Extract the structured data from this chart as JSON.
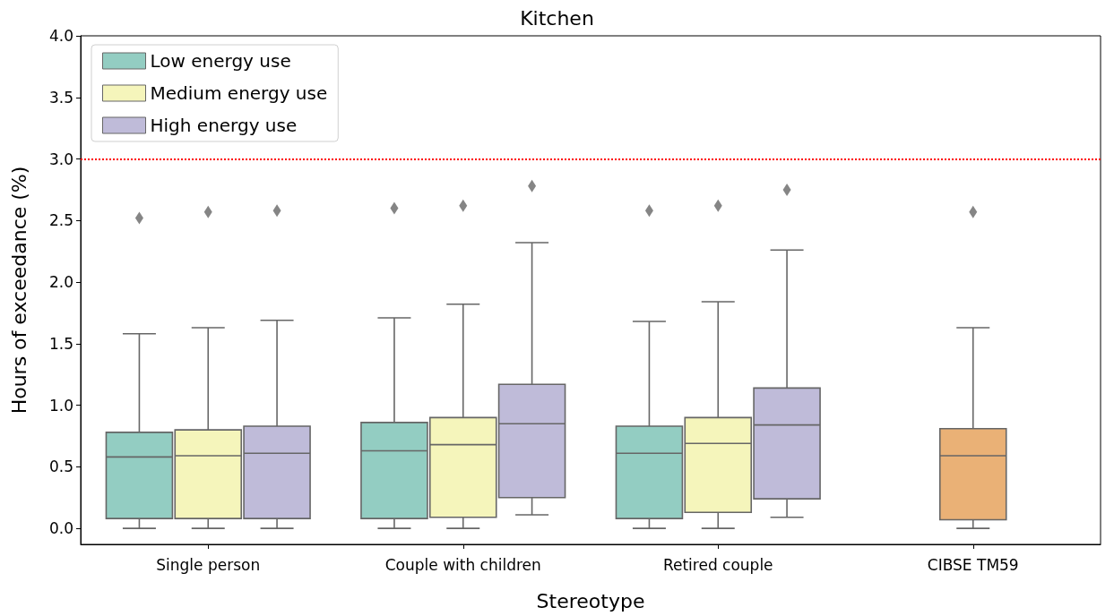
{
  "chart_data": {
    "type": "box",
    "title": "Kitchen",
    "xlabel": "Stereotype",
    "ylabel": "Hours of exceedance (%)",
    "categories": [
      "Single person",
      "Couple with children",
      "Retired couple",
      "CIBSE TM59"
    ],
    "ylim": [
      -0.13,
      4.0
    ],
    "yticks": [
      {
        "value": 0,
        "label": "0.0"
      },
      {
        "value": 0.5,
        "label": "0.5"
      },
      {
        "value": 1,
        "label": "1.0"
      },
      {
        "value": 1.5,
        "label": "1.5"
      },
      {
        "value": 2,
        "label": "2.0"
      },
      {
        "value": 2.5,
        "label": "2.5"
      },
      {
        "value": 3,
        "label": "3.0"
      },
      {
        "value": 3.5,
        "label": "3.5"
      },
      {
        "value": 4,
        "label": "4.0"
      }
    ],
    "grid": false,
    "legend": "top left",
    "marker": "diamond",
    "ref_lines": [
      {
        "axis": "y",
        "value": 3.0,
        "color": "#ff0000",
        "line_style": "dotted"
      }
    ],
    "series": [
      {
        "name": "Low energy use",
        "color": "#93cdc2",
        "boxes": [
          {
            "low": 0,
            "q1": 0.08,
            "median": 0.58,
            "q3": 0.78,
            "high": 1.58,
            "outliers": [
              2.52
            ]
          },
          {
            "low": 0,
            "q1": 0.08,
            "median": 0.63,
            "q3": 0.86,
            "high": 1.71,
            "outliers": [
              2.6
            ]
          },
          {
            "low": 0,
            "q1": 0.08,
            "median": 0.61,
            "q3": 0.83,
            "high": 1.68,
            "outliers": [
              2.58
            ]
          },
          null
        ]
      },
      {
        "name": "Medium energy use",
        "color": "#f5f5bb",
        "boxes": [
          {
            "low": 0,
            "q1": 0.08,
            "median": 0.59,
            "q3": 0.8,
            "high": 1.63,
            "outliers": [
              2.57
            ]
          },
          {
            "low": 0,
            "q1": 0.09,
            "median": 0.68,
            "q3": 0.9,
            "high": 1.82,
            "outliers": [
              2.62
            ]
          },
          {
            "low": 0,
            "q1": 0.13,
            "median": 0.69,
            "q3": 0.9,
            "high": 1.84,
            "outliers": [
              2.62
            ]
          },
          null
        ]
      },
      {
        "name": "High energy use",
        "color": "#bfbbd9",
        "boxes": [
          {
            "low": 0,
            "q1": 0.08,
            "median": 0.61,
            "q3": 0.83,
            "high": 1.69,
            "outliers": [
              2.58
            ]
          },
          {
            "low": 0.11,
            "q1": 0.25,
            "median": 0.85,
            "q3": 1.17,
            "high": 2.32,
            "outliers": [
              2.78
            ]
          },
          {
            "low": 0.09,
            "q1": 0.24,
            "median": 0.84,
            "q3": 1.14,
            "high": 2.26,
            "outliers": [
              2.75
            ]
          },
          null
        ]
      },
      {
        "color": "#eab176",
        "boxes": [
          null,
          null,
          null,
          {
            "low": 0,
            "q1": 0.07,
            "median": 0.59,
            "q3": 0.81,
            "high": 1.63,
            "outliers": [
              2.57
            ]
          }
        ]
      }
    ]
  }
}
